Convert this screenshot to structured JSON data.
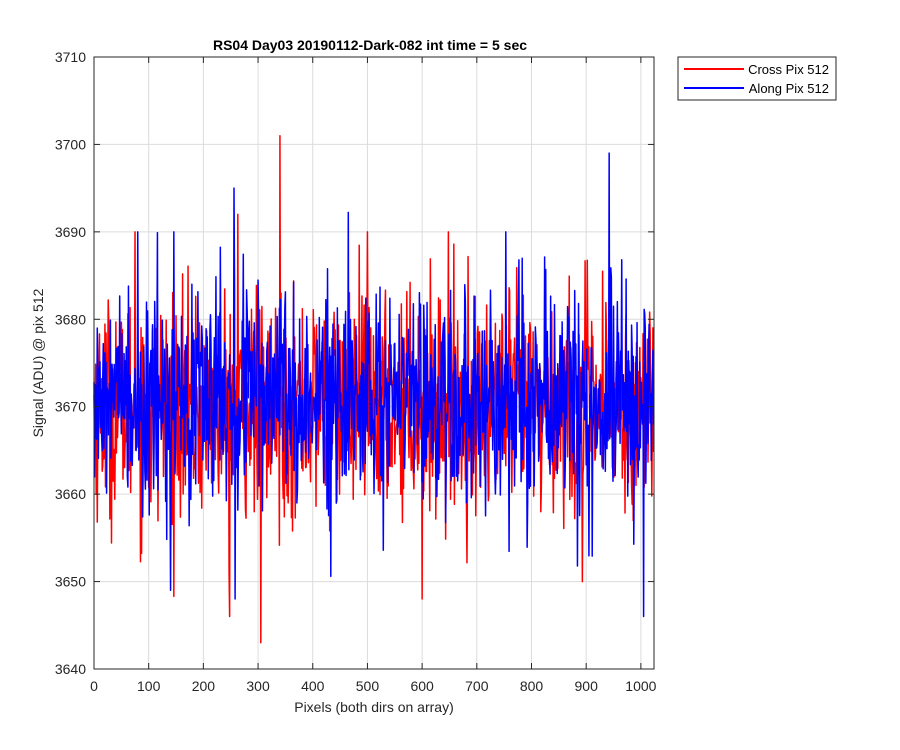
{
  "chart_data": {
    "type": "line",
    "title": "RS04 Day03 20190112-Dark-082 int time = 5 sec",
    "xlabel": "Pixels (both dirs on array)",
    "ylabel": "Signal (ADU) @ pix 512",
    "xlim": [
      0,
      1024
    ],
    "ylim": [
      3640,
      3710
    ],
    "xticks": [
      0,
      100,
      200,
      300,
      400,
      500,
      600,
      700,
      800,
      900,
      1000
    ],
    "yticks": [
      3640,
      3650,
      3660,
      3670,
      3680,
      3690,
      3700,
      3710
    ],
    "grid": true,
    "legend_position": "outside-top-right",
    "n_points": 1024,
    "series": [
      {
        "name": "Cross Pix 512",
        "color": "#ff0000",
        "mean": 3670,
        "min": 3643,
        "max": 3701,
        "peaks": [
          {
            "x": 340,
            "y": 3701
          },
          {
            "x": 305,
            "y": 3643
          },
          {
            "x": 248,
            "y": 3646
          },
          {
            "x": 600,
            "y": 3648
          },
          {
            "x": 893,
            "y": 3650
          },
          {
            "x": 263,
            "y": 3692
          },
          {
            "x": 75,
            "y": 3690
          },
          {
            "x": 500,
            "y": 3690
          },
          {
            "x": 648,
            "y": 3690
          }
        ]
      },
      {
        "name": "Along Pix 512",
        "color": "#0000ff",
        "mean": 3671,
        "min": 3646,
        "max": 3699,
        "peaks": [
          {
            "x": 942,
            "y": 3699
          },
          {
            "x": 256,
            "y": 3695
          },
          {
            "x": 1005,
            "y": 3646
          },
          {
            "x": 140,
            "y": 3649
          },
          {
            "x": 258,
            "y": 3648
          },
          {
            "x": 80,
            "y": 3690
          },
          {
            "x": 146,
            "y": 3690
          },
          {
            "x": 753,
            "y": 3690
          }
        ]
      }
    ]
  }
}
